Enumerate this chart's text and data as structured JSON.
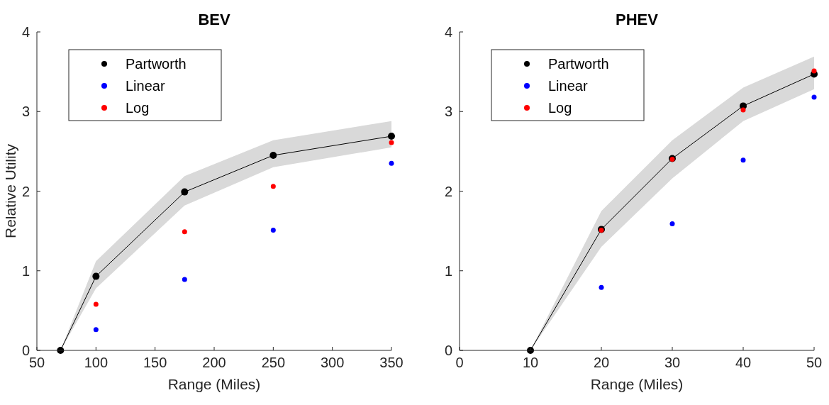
{
  "chart_data": [
    {
      "type": "scatter",
      "title": "BEV",
      "xlabel": "Range (Miles)",
      "ylabel": "Relative Utility",
      "x": [
        70,
        100,
        175,
        250,
        350
      ],
      "xlim": [
        50,
        350
      ],
      "xticks": [
        50,
        100,
        150,
        200,
        250,
        300,
        350
      ],
      "ylim": [
        0,
        4
      ],
      "yticks": [
        0,
        1,
        2,
        3,
        4
      ],
      "legend": "top left",
      "marker": "circle",
      "grid": false,
      "series": [
        {
          "name": "Partworth",
          "type": "line",
          "color": "#000000",
          "values": [
            0,
            0.93,
            1.99,
            2.45,
            2.69
          ],
          "lower": [
            0,
            0.78,
            1.82,
            2.3,
            2.55
          ],
          "upper": [
            0,
            1.12,
            2.19,
            2.64,
            2.88
          ]
        },
        {
          "name": "Linear",
          "color": "#0000ff",
          "values": [
            null,
            0.26,
            0.89,
            1.51,
            2.35
          ]
        },
        {
          "name": "Log",
          "color": "#ff0000",
          "values": [
            null,
            0.58,
            1.49,
            2.06,
            2.61
          ]
        }
      ]
    },
    {
      "type": "scatter",
      "title": "PHEV",
      "xlabel": "Range (Miles)",
      "x": [
        10,
        20,
        30,
        40,
        50
      ],
      "xlim": [
        0,
        50
      ],
      "xticks": [
        0,
        10,
        20,
        30,
        40,
        50
      ],
      "ylim": [
        0,
        4
      ],
      "yticks": [
        0,
        1,
        2,
        3,
        4
      ],
      "legend": "top left",
      "marker": "circle",
      "grid": false,
      "series": [
        {
          "name": "Partworth",
          "type": "line",
          "color": "#000000",
          "values": [
            0,
            1.52,
            2.41,
            3.07,
            3.47
          ],
          "lower": [
            0,
            1.3,
            2.16,
            2.88,
            3.28
          ],
          "upper": [
            0,
            1.75,
            2.64,
            3.3,
            3.69
          ]
        },
        {
          "name": "Linear",
          "color": "#0000ff",
          "values": [
            null,
            0.79,
            1.59,
            2.39,
            3.18
          ]
        },
        {
          "name": "Log",
          "color": "#ff0000",
          "values": [
            null,
            1.51,
            2.4,
            3.02,
            3.51
          ]
        }
      ]
    }
  ]
}
